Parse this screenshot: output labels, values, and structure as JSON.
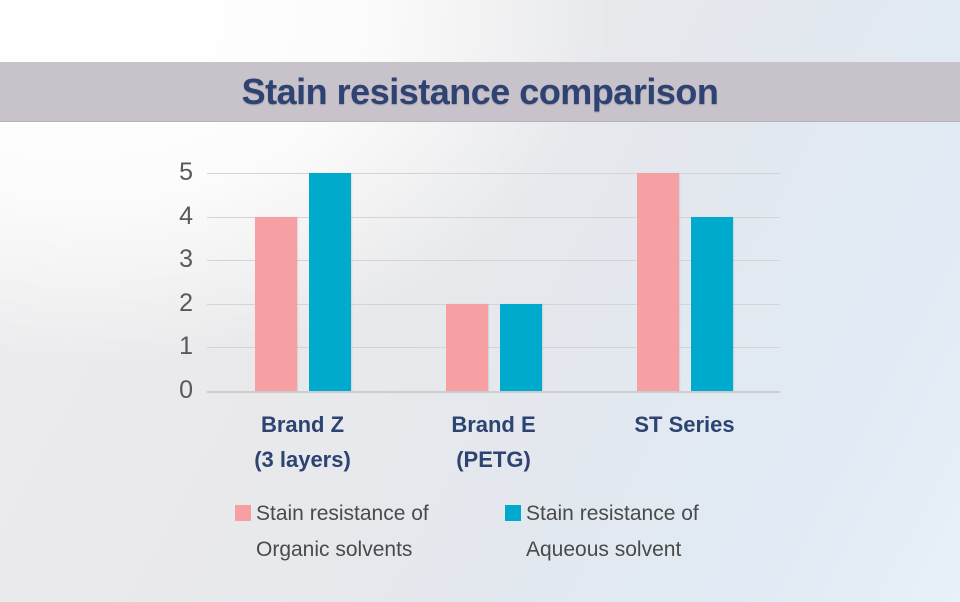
{
  "title": "Stain resistance comparison",
  "colors": {
    "banner_bg": "#c8c2ca",
    "title_text": "#2e4372",
    "category_text": "#2d4372",
    "axis_text": "#58595b",
    "legend_text": "#4a4a4a",
    "gridline": "#d6d3d6",
    "series_organic": "#f7a0a4",
    "series_aqueous": "#00aacd"
  },
  "chart_data": {
    "type": "bar",
    "title": "Stain resistance comparison",
    "categories": [
      "Brand Z (3 layers)",
      "Brand E (PETG)",
      "ST Series"
    ],
    "category_lines": [
      [
        "Brand Z",
        "(3 layers)"
      ],
      [
        "Brand E",
        "(PETG)"
      ],
      [
        "ST Series"
      ]
    ],
    "series": [
      {
        "name": "Stain resistance of Organic solvents",
        "legend_lines": [
          "Stain resistance of",
          "Organic solvents"
        ],
        "color": "#f7a0a4",
        "values": [
          4,
          2,
          5
        ]
      },
      {
        "name": "Stain resistance of Aqueous solvent",
        "legend_lines": [
          "Stain resistance of",
          "Aqueous solvent"
        ],
        "color": "#00aacd",
        "values": [
          5,
          2,
          4
        ]
      }
    ],
    "xlabel": "",
    "ylabel": "",
    "ylim": [
      0,
      5
    ],
    "yticks": [
      0,
      1,
      2,
      3,
      4,
      5
    ],
    "grid": true,
    "legend_position": "bottom"
  },
  "layout": {
    "legend_item_lefts": [
      235,
      505
    ]
  }
}
